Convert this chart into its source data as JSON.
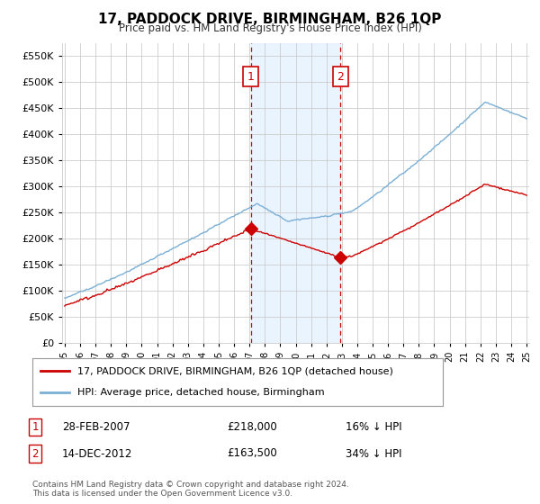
{
  "title": "17, PADDOCK DRIVE, BIRMINGHAM, B26 1QP",
  "subtitle": "Price paid vs. HM Land Registry's House Price Index (HPI)",
  "hpi_color": "#7bafd4",
  "price_color": "#cc0000",
  "marker1_date_idx": 145,
  "marker1_price": 218000,
  "marker2_date_idx": 215,
  "marker2_price": 163500,
  "ylim": [
    0,
    575000
  ],
  "yticks": [
    0,
    50000,
    100000,
    150000,
    200000,
    250000,
    300000,
    350000,
    400000,
    450000,
    500000,
    550000
  ],
  "xlim_start": 0,
  "legend_label1": "17, PADDOCK DRIVE, BIRMINGHAM, B26 1QP (detached house)",
  "legend_label2": "HPI: Average price, detached house, Birmingham",
  "table_row1": [
    "1",
    "28-FEB-2007",
    "£218,000",
    "16% ↓ HPI"
  ],
  "table_row2": [
    "2",
    "14-DEC-2012",
    "£163,500",
    "34% ↓ HPI"
  ],
  "footnote": "Contains HM Land Registry data © Crown copyright and database right 2024.\nThis data is licensed under the Open Government Licence v3.0.",
  "bg_color": "#ffffff",
  "grid_color": "#cccccc"
}
